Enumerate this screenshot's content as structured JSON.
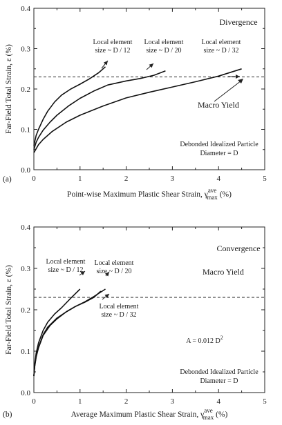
{
  "chart_data": [
    {
      "type": "line",
      "panel_label": "(a)",
      "ylabel": "Far-Field Total Strain, ε (%)",
      "xlabel_main": "Point-wise Maximum Plastic Shear Strain, γ",
      "xlabel_sup": "ave",
      "xlabel_sub": "max",
      "xlabel_unit": " (%)",
      "xlim": [
        0,
        5
      ],
      "ylim": [
        0,
        0.4
      ],
      "xticks": [
        "0",
        "1",
        "2",
        "3",
        "4",
        "5"
      ],
      "yticks": [
        "0.0",
        "0.1",
        "0.2",
        "0.3",
        "0.4"
      ],
      "corner_text": "Divergence",
      "note_lines": [
        "Debonded Idealized Particle",
        "Diameter = D"
      ],
      "macro_yield": {
        "label": "Macro Yield",
        "y": 0.23
      },
      "series": [
        {
          "label_lines": [
            "Local element",
            "size ~ D / 12"
          ],
          "x": [
            0,
            0.05,
            0.1,
            0.2,
            0.3,
            0.45,
            0.6,
            0.8,
            1.0,
            1.2,
            1.4,
            1.55
          ],
          "y": [
            0.06,
            0.085,
            0.1,
            0.125,
            0.145,
            0.168,
            0.185,
            0.2,
            0.212,
            0.225,
            0.24,
            0.255
          ]
        },
        {
          "label_lines": [
            "Local element",
            "size ~ D / 20"
          ],
          "x": [
            0,
            0.05,
            0.1,
            0.2,
            0.35,
            0.5,
            0.75,
            1.0,
            1.3,
            1.6,
            2.0,
            2.3,
            2.6,
            2.85
          ],
          "y": [
            0.05,
            0.068,
            0.08,
            0.098,
            0.118,
            0.135,
            0.158,
            0.177,
            0.195,
            0.21,
            0.22,
            0.226,
            0.234,
            0.245
          ]
        },
        {
          "label_lines": [
            "Local element",
            "size ~ D / 32"
          ],
          "x": [
            0,
            0.1,
            0.2,
            0.4,
            0.7,
            1.0,
            1.5,
            2.0,
            2.5,
            3.0,
            3.5,
            4.0,
            4.5
          ],
          "y": [
            0.042,
            0.062,
            0.075,
            0.095,
            0.118,
            0.135,
            0.158,
            0.178,
            0.192,
            0.205,
            0.218,
            0.232,
            0.25
          ]
        }
      ]
    },
    {
      "type": "line",
      "panel_label": "(b)",
      "ylabel": "Far-Field Total Strain, ε (%)",
      "xlabel_main": "Average Maximum Plastic Shear Strain, γ",
      "xlabel_sup": "ave",
      "xlabel_sub": "max",
      "xlabel_unit": " (%)",
      "xlim": [
        0,
        5
      ],
      "ylim": [
        0,
        0.4
      ],
      "xticks": [
        "0",
        "1",
        "2",
        "3",
        "4",
        "5"
      ],
      "yticks": [
        "0.0",
        "0.1",
        "0.2",
        "0.3",
        "0.4"
      ],
      "corner_text": "Convergence",
      "area_text": "A = 0.012 D",
      "area_sup": "2",
      "note_lines": [
        "Debonded Idealized Particle",
        "Diameter = D"
      ],
      "macro_yield": {
        "label": "Macro Yield",
        "y": 0.23
      },
      "series": [
        {
          "label_lines": [
            "Local element",
            "size ~ D / 12"
          ],
          "x": [
            0,
            0.02,
            0.05,
            0.1,
            0.2,
            0.3,
            0.45,
            0.6,
            0.8,
            1.0
          ],
          "y": [
            0.04,
            0.07,
            0.095,
            0.12,
            0.15,
            0.17,
            0.19,
            0.205,
            0.228,
            0.25
          ]
        },
        {
          "label_lines": [
            "Local element",
            "size ~ D / 20"
          ],
          "x": [
            0,
            0.02,
            0.05,
            0.1,
            0.2,
            0.3,
            0.5,
            0.7,
            0.9,
            1.1,
            1.3,
            1.45
          ],
          "y": [
            0.04,
            0.065,
            0.088,
            0.11,
            0.14,
            0.158,
            0.18,
            0.195,
            0.208,
            0.218,
            0.23,
            0.245
          ]
        },
        {
          "label_lines": [
            "Local element",
            "size ~ D / 32"
          ],
          "x": [
            0,
            0.02,
            0.05,
            0.1,
            0.2,
            0.35,
            0.5,
            0.7,
            0.9,
            1.1,
            1.3,
            1.55
          ],
          "y": [
            0.04,
            0.064,
            0.086,
            0.108,
            0.138,
            0.162,
            0.178,
            0.195,
            0.208,
            0.219,
            0.232,
            0.25
          ]
        }
      ]
    }
  ]
}
